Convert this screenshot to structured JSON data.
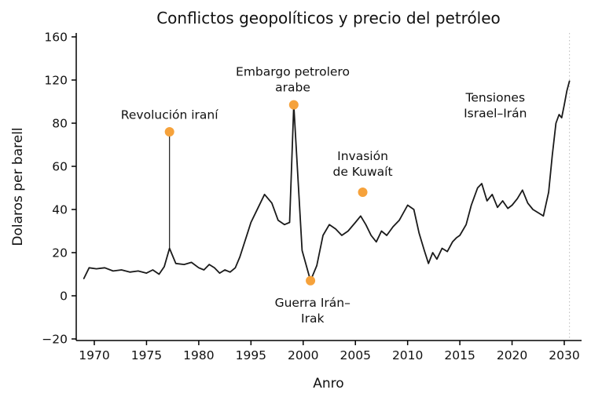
{
  "chart_data": {
    "type": "line",
    "title": "Conflictos geopolíticos y precio del petróleo",
    "xlabel": "Anro",
    "ylabel": "Dolaros per barell",
    "x_ticks": [
      1970,
      1975,
      1980,
      1995,
      2000,
      2005,
      2010,
      2015,
      2020,
      2030
    ],
    "y_ticks": [
      160,
      120,
      80,
      60,
      40,
      20,
      0,
      -20
    ],
    "line_color": "#1a1a1a",
    "dot_color": "#F6A23B",
    "axis_color": "#000000",
    "ref_line": {
      "year": 2031,
      "color": "#bbbbbb"
    },
    "series": [
      {
        "name": "precio del petróleo",
        "points": [
          [
            1969.0,
            8
          ],
          [
            1969.5,
            13
          ],
          [
            1970.2,
            12.5
          ],
          [
            1971.0,
            13
          ],
          [
            1971.8,
            11.5
          ],
          [
            1972.6,
            12
          ],
          [
            1973.4,
            11
          ],
          [
            1974.2,
            11.5
          ],
          [
            1975.0,
            10.5
          ],
          [
            1975.6,
            12
          ],
          [
            1976.2,
            10
          ],
          [
            1976.7,
            13.5
          ],
          [
            1977.2,
            22
          ],
          [
            1977.8,
            15
          ],
          [
            1978.6,
            14.5
          ],
          [
            1979.3,
            15.5
          ],
          [
            1980.0,
            13
          ],
          [
            1981.5,
            12
          ],
          [
            1983.0,
            14.5
          ],
          [
            1984.5,
            13
          ],
          [
            1986.0,
            10.5
          ],
          [
            1987.5,
            12
          ],
          [
            1989.0,
            11
          ],
          [
            1990.5,
            13
          ],
          [
            1991.8,
            18
          ],
          [
            1993.0,
            24
          ],
          [
            1994.0,
            29
          ],
          [
            1995.0,
            34
          ],
          [
            1995.7,
            41
          ],
          [
            1996.3,
            47
          ],
          [
            1997.0,
            43
          ],
          [
            1997.6,
            35
          ],
          [
            1998.2,
            33
          ],
          [
            1998.7,
            34
          ],
          [
            1999.1,
            97
          ],
          [
            1999.9,
            21
          ],
          [
            2000.7,
            7
          ],
          [
            2001.3,
            14
          ],
          [
            2001.9,
            28
          ],
          [
            2002.5,
            33
          ],
          [
            2003.1,
            31
          ],
          [
            2003.7,
            28
          ],
          [
            2004.3,
            30
          ],
          [
            2005.0,
            34
          ],
          [
            2005.5,
            37
          ],
          [
            2006.0,
            33
          ],
          [
            2006.5,
            28
          ],
          [
            2007.0,
            25
          ],
          [
            2007.5,
            30
          ],
          [
            2008.0,
            28
          ],
          [
            2008.6,
            32
          ],
          [
            2009.2,
            35
          ],
          [
            2010.0,
            42
          ],
          [
            2010.6,
            40
          ],
          [
            2011.1,
            29
          ],
          [
            2011.6,
            21
          ],
          [
            2012.0,
            15
          ],
          [
            2012.4,
            20
          ],
          [
            2012.8,
            17
          ],
          [
            2013.3,
            22
          ],
          [
            2013.8,
            20.5
          ],
          [
            2014.3,
            25
          ],
          [
            2014.7,
            27
          ],
          [
            2015.0,
            28
          ],
          [
            2015.6,
            33
          ],
          [
            2016.1,
            42
          ],
          [
            2016.7,
            50
          ],
          [
            2017.1,
            52
          ],
          [
            2017.6,
            44
          ],
          [
            2018.1,
            47
          ],
          [
            2018.6,
            41
          ],
          [
            2019.1,
            44
          ],
          [
            2019.6,
            40.5
          ],
          [
            2020.0,
            42
          ],
          [
            2021.0,
            45
          ],
          [
            2022.0,
            49
          ],
          [
            2023.0,
            43
          ],
          [
            2024.0,
            40
          ],
          [
            2025.0,
            38.5
          ],
          [
            2026.0,
            37
          ],
          [
            2027.0,
            48
          ],
          [
            2027.7,
            65
          ],
          [
            2028.4,
            80
          ],
          [
            2029.0,
            88
          ],
          [
            2029.5,
            85
          ],
          [
            2030.0,
            97
          ],
          [
            2030.5,
            110
          ],
          [
            2031.0,
            119
          ]
        ]
      }
    ],
    "annotations": [
      {
        "id": "revolucion-irani",
        "lines": [
          "Revolución iraní"
        ],
        "dot": {
          "year": 1977.2,
          "value": 76
        },
        "stem_from": 22,
        "label": {
          "year": 1977.2,
          "value": 84
        }
      },
      {
        "id": "embargo-petrolero-arabe",
        "lines": [
          "Embargo petrolero",
          "arabe"
        ],
        "dot": {
          "year": 1999.1,
          "value": 97
        },
        "label": {
          "year": 1999.0,
          "value": 124
        }
      },
      {
        "id": "invasion-de-kuwait",
        "lines": [
          "Invasión",
          "de Kuwaít"
        ],
        "dot": {
          "year": 2005.7,
          "value": 48
        },
        "label": {
          "year": 2005.7,
          "value": 63
        }
      },
      {
        "id": "guerra-iran-irak",
        "lines": [
          "Guerra Irán–",
          "Irak"
        ],
        "dot": {
          "year": 2000.7,
          "value": 7
        },
        "label": {
          "year": 2000.9,
          "value": -5
        }
      },
      {
        "id": "tensiones-israel-iran",
        "lines": [
          "Tensiones",
          "Israel–Irán"
        ],
        "label": {
          "year": 2018.4,
          "value": 100
        }
      }
    ]
  }
}
